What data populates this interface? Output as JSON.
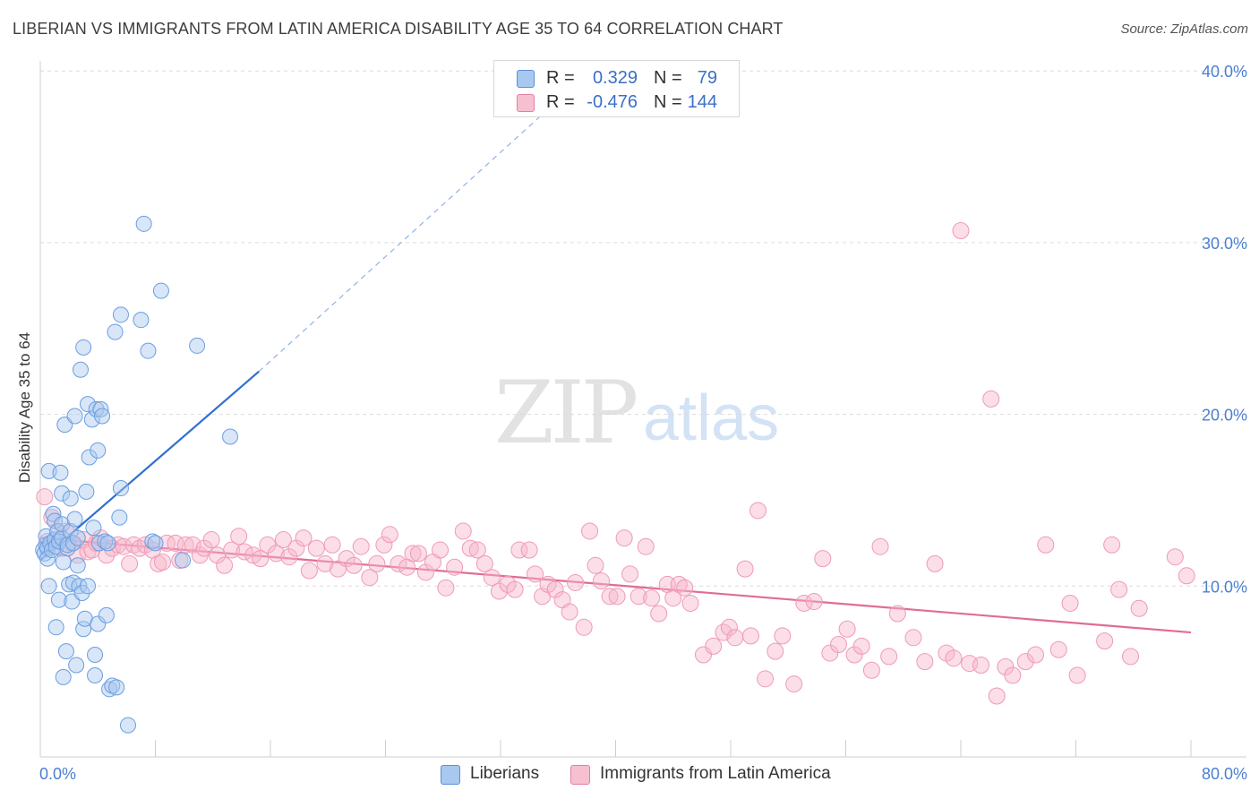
{
  "title": "LIBERIAN VS IMMIGRANTS FROM LATIN AMERICA DISABILITY AGE 35 TO 64 CORRELATION CHART",
  "source": "Source: ZipAtlas.com",
  "watermark": {
    "zip": "ZIP",
    "atlas": "atlas"
  },
  "legend_top": [
    {
      "r_label": "R =",
      "r_value": "0.329",
      "n_label": "N =",
      "n_value": "79",
      "color": "#a8c8f0",
      "border": "#5b8fd8"
    },
    {
      "r_label": "R =",
      "r_value": "-0.476",
      "n_label": "N =",
      "n_value": "144",
      "color": "#f7c0d0",
      "border": "#e57fa0"
    }
  ],
  "legend_bottom": [
    {
      "label": "Liberians",
      "color": "#a8c8f0",
      "border": "#5b8fd8"
    },
    {
      "label": "Immigrants from Latin America",
      "color": "#f7c0d0",
      "border": "#e57fa0"
    }
  ],
  "chart_data": {
    "type": "scatter",
    "title": "LIBERIAN VS IMMIGRANTS FROM LATIN AMERICA DISABILITY AGE 35 TO 64 CORRELATION CHART",
    "xlabel": "",
    "ylabel": "Disability Age 35 to 64",
    "xlim": [
      0,
      80
    ],
    "ylim": [
      0,
      42
    ],
    "x_tick_labels": [
      "0.0%",
      "80.0%"
    ],
    "y_ticks": [
      10,
      20,
      30,
      40
    ],
    "y_tick_labels": [
      "10.0%",
      "20.0%",
      "30.0%",
      "40.0%"
    ],
    "grid": true,
    "legend_position": "top-center",
    "colors": {
      "liberians": "#5b8fd8",
      "latin_america": "#e57fa0"
    },
    "series": [
      {
        "name": "Liberians",
        "trend": {
          "x": [
            0,
            15.2
          ],
          "y": [
            11.5,
            22.5
          ],
          "dashed_to": [
            36,
            38.3
          ]
        },
        "points": [
          [
            0.2,
            12.1
          ],
          [
            0.3,
            11.9
          ],
          [
            0.4,
            12.4
          ],
          [
            0.4,
            12.9
          ],
          [
            0.5,
            12.2
          ],
          [
            0.5,
            11.6
          ],
          [
            0.6,
            16.7
          ],
          [
            0.6,
            10.0
          ],
          [
            0.7,
            12.5
          ],
          [
            0.8,
            12.1
          ],
          [
            0.9,
            14.2
          ],
          [
            1.0,
            12.7
          ],
          [
            1.0,
            13.8
          ],
          [
            1.1,
            12.3
          ],
          [
            1.1,
            7.6
          ],
          [
            1.2,
            13.2
          ],
          [
            1.3,
            12.6
          ],
          [
            1.3,
            9.2
          ],
          [
            1.4,
            16.6
          ],
          [
            1.5,
            12.8
          ],
          [
            1.5,
            15.4
          ],
          [
            1.5,
            13.6
          ],
          [
            1.6,
            4.7
          ],
          [
            1.6,
            11.4
          ],
          [
            1.7,
            19.4
          ],
          [
            1.8,
            6.2
          ],
          [
            1.9,
            12.2
          ],
          [
            1.9,
            12.4
          ],
          [
            2.0,
            10.1
          ],
          [
            2.1,
            13.2
          ],
          [
            2.1,
            15.1
          ],
          [
            2.2,
            9.1
          ],
          [
            2.3,
            12.5
          ],
          [
            2.3,
            10.2
          ],
          [
            2.4,
            13.9
          ],
          [
            2.4,
            19.9
          ],
          [
            2.5,
            5.4
          ],
          [
            2.6,
            11.2
          ],
          [
            2.6,
            12.8
          ],
          [
            2.7,
            10.0
          ],
          [
            2.8,
            22.6
          ],
          [
            2.9,
            9.6
          ],
          [
            3.0,
            23.9
          ],
          [
            3.0,
            7.5
          ],
          [
            3.1,
            8.1
          ],
          [
            3.2,
            15.5
          ],
          [
            3.3,
            10.0
          ],
          [
            3.3,
            20.6
          ],
          [
            3.4,
            17.5
          ],
          [
            3.6,
            19.7
          ],
          [
            3.7,
            13.4
          ],
          [
            3.8,
            6.0
          ],
          [
            3.8,
            4.8
          ],
          [
            3.9,
            20.3
          ],
          [
            4.0,
            17.9
          ],
          [
            4.0,
            7.8
          ],
          [
            4.1,
            12.5
          ],
          [
            4.2,
            20.3
          ],
          [
            4.3,
            19.9
          ],
          [
            4.5,
            12.6
          ],
          [
            4.6,
            8.3
          ],
          [
            4.7,
            12.5
          ],
          [
            4.8,
            4.0
          ],
          [
            5.0,
            4.2
          ],
          [
            5.2,
            24.8
          ],
          [
            5.3,
            4.1
          ],
          [
            5.5,
            14.0
          ],
          [
            5.6,
            15.7
          ],
          [
            5.6,
            25.8
          ],
          [
            6.1,
            1.9
          ],
          [
            7.0,
            25.5
          ],
          [
            7.2,
            31.1
          ],
          [
            7.5,
            23.7
          ],
          [
            7.8,
            12.6
          ],
          [
            8.0,
            12.5
          ],
          [
            8.4,
            27.2
          ],
          [
            9.9,
            11.5
          ],
          [
            10.9,
            24.0
          ],
          [
            13.2,
            18.7
          ]
        ]
      },
      {
        "name": "Immigrants from Latin America",
        "trend": {
          "x": [
            0,
            80
          ],
          "y": [
            12.8,
            7.3
          ]
        },
        "points": [
          [
            0.3,
            15.2
          ],
          [
            0.5,
            12.6
          ],
          [
            0.8,
            14.0
          ],
          [
            1.2,
            13.1
          ],
          [
            1.5,
            12.2
          ],
          [
            1.8,
            13.2
          ],
          [
            2.2,
            12.5
          ],
          [
            2.6,
            11.8
          ],
          [
            3.0,
            12.7
          ],
          [
            3.3,
            12.0
          ],
          [
            3.6,
            12.1
          ],
          [
            3.9,
            12.5
          ],
          [
            4.2,
            12.8
          ],
          [
            4.6,
            11.8
          ],
          [
            5.0,
            12.2
          ],
          [
            5.4,
            12.4
          ],
          [
            5.8,
            12.3
          ],
          [
            6.2,
            11.3
          ],
          [
            6.5,
            12.4
          ],
          [
            6.9,
            12.2
          ],
          [
            7.3,
            12.4
          ],
          [
            7.8,
            12.1
          ],
          [
            8.2,
            11.3
          ],
          [
            8.5,
            11.4
          ],
          [
            8.8,
            12.5
          ],
          [
            9.4,
            12.5
          ],
          [
            9.7,
            11.5
          ],
          [
            10.1,
            12.4
          ],
          [
            10.6,
            12.4
          ],
          [
            11.1,
            11.8
          ],
          [
            11.4,
            12.2
          ],
          [
            11.9,
            12.7
          ],
          [
            12.3,
            11.8
          ],
          [
            12.8,
            11.2
          ],
          [
            13.3,
            12.1
          ],
          [
            13.8,
            12.9
          ],
          [
            14.2,
            12.0
          ],
          [
            14.8,
            11.8
          ],
          [
            15.3,
            11.6
          ],
          [
            15.8,
            12.4
          ],
          [
            16.4,
            11.9
          ],
          [
            16.9,
            12.7
          ],
          [
            17.3,
            11.7
          ],
          [
            17.8,
            12.2
          ],
          [
            18.3,
            12.8
          ],
          [
            18.7,
            10.9
          ],
          [
            19.2,
            12.2
          ],
          [
            19.8,
            11.3
          ],
          [
            20.3,
            12.4
          ],
          [
            20.7,
            11.0
          ],
          [
            21.3,
            11.6
          ],
          [
            21.8,
            11.2
          ],
          [
            22.3,
            12.3
          ],
          [
            22.9,
            10.5
          ],
          [
            23.4,
            11.3
          ],
          [
            23.9,
            12.4
          ],
          [
            24.3,
            13.0
          ],
          [
            24.9,
            11.3
          ],
          [
            25.5,
            11.1
          ],
          [
            25.9,
            11.9
          ],
          [
            26.3,
            11.9
          ],
          [
            26.8,
            10.8
          ],
          [
            27.3,
            11.4
          ],
          [
            27.8,
            12.1
          ],
          [
            28.2,
            9.9
          ],
          [
            28.8,
            11.1
          ],
          [
            29.4,
            13.2
          ],
          [
            29.9,
            12.2
          ],
          [
            30.4,
            12.1
          ],
          [
            30.9,
            11.3
          ],
          [
            31.4,
            10.5
          ],
          [
            31.9,
            9.7
          ],
          [
            32.5,
            10.1
          ],
          [
            33.0,
            9.8
          ],
          [
            33.3,
            12.1
          ],
          [
            34.0,
            12.1
          ],
          [
            34.4,
            10.7
          ],
          [
            34.9,
            9.4
          ],
          [
            35.3,
            10.1
          ],
          [
            35.8,
            9.8
          ],
          [
            36.3,
            9.2
          ],
          [
            36.8,
            8.5
          ],
          [
            37.2,
            10.2
          ],
          [
            37.8,
            7.6
          ],
          [
            38.2,
            13.2
          ],
          [
            38.6,
            11.2
          ],
          [
            39.0,
            10.3
          ],
          [
            39.6,
            9.4
          ],
          [
            40.1,
            9.4
          ],
          [
            40.6,
            12.8
          ],
          [
            41.0,
            10.7
          ],
          [
            41.6,
            9.4
          ],
          [
            42.1,
            12.3
          ],
          [
            42.5,
            9.3
          ],
          [
            43.0,
            8.4
          ],
          [
            43.6,
            10.1
          ],
          [
            44.0,
            9.3
          ],
          [
            44.4,
            10.1
          ],
          [
            44.8,
            9.9
          ],
          [
            45.2,
            9.0
          ],
          [
            46.1,
            6.0
          ],
          [
            46.8,
            6.5
          ],
          [
            47.5,
            7.3
          ],
          [
            47.9,
            7.6
          ],
          [
            48.3,
            7.0
          ],
          [
            49.0,
            11.0
          ],
          [
            49.4,
            7.1
          ],
          [
            49.9,
            14.4
          ],
          [
            50.4,
            4.6
          ],
          [
            51.1,
            6.2
          ],
          [
            51.6,
            7.1
          ],
          [
            52.4,
            4.3
          ],
          [
            53.1,
            9.0
          ],
          [
            53.8,
            9.1
          ],
          [
            54.4,
            11.6
          ],
          [
            54.9,
            6.1
          ],
          [
            55.5,
            6.6
          ],
          [
            56.1,
            7.5
          ],
          [
            56.6,
            6.0
          ],
          [
            57.1,
            6.5
          ],
          [
            57.8,
            5.1
          ],
          [
            58.4,
            12.3
          ],
          [
            59.0,
            5.9
          ],
          [
            59.6,
            8.4
          ],
          [
            60.7,
            7.0
          ],
          [
            61.5,
            5.6
          ],
          [
            62.2,
            11.3
          ],
          [
            63.0,
            6.1
          ],
          [
            63.5,
            5.8
          ],
          [
            64.0,
            30.7
          ],
          [
            64.6,
            5.5
          ],
          [
            65.4,
            5.4
          ],
          [
            66.1,
            20.9
          ],
          [
            66.5,
            3.6
          ],
          [
            67.1,
            5.3
          ],
          [
            67.6,
            4.8
          ],
          [
            68.5,
            5.6
          ],
          [
            69.2,
            6.0
          ],
          [
            69.9,
            12.4
          ],
          [
            70.8,
            6.3
          ],
          [
            71.6,
            9.0
          ],
          [
            72.1,
            4.8
          ],
          [
            74.0,
            6.8
          ],
          [
            74.5,
            12.4
          ],
          [
            75.0,
            9.8
          ],
          [
            75.8,
            5.9
          ],
          [
            76.4,
            8.7
          ],
          [
            78.9,
            11.7
          ],
          [
            79.7,
            10.6
          ]
        ]
      }
    ]
  }
}
